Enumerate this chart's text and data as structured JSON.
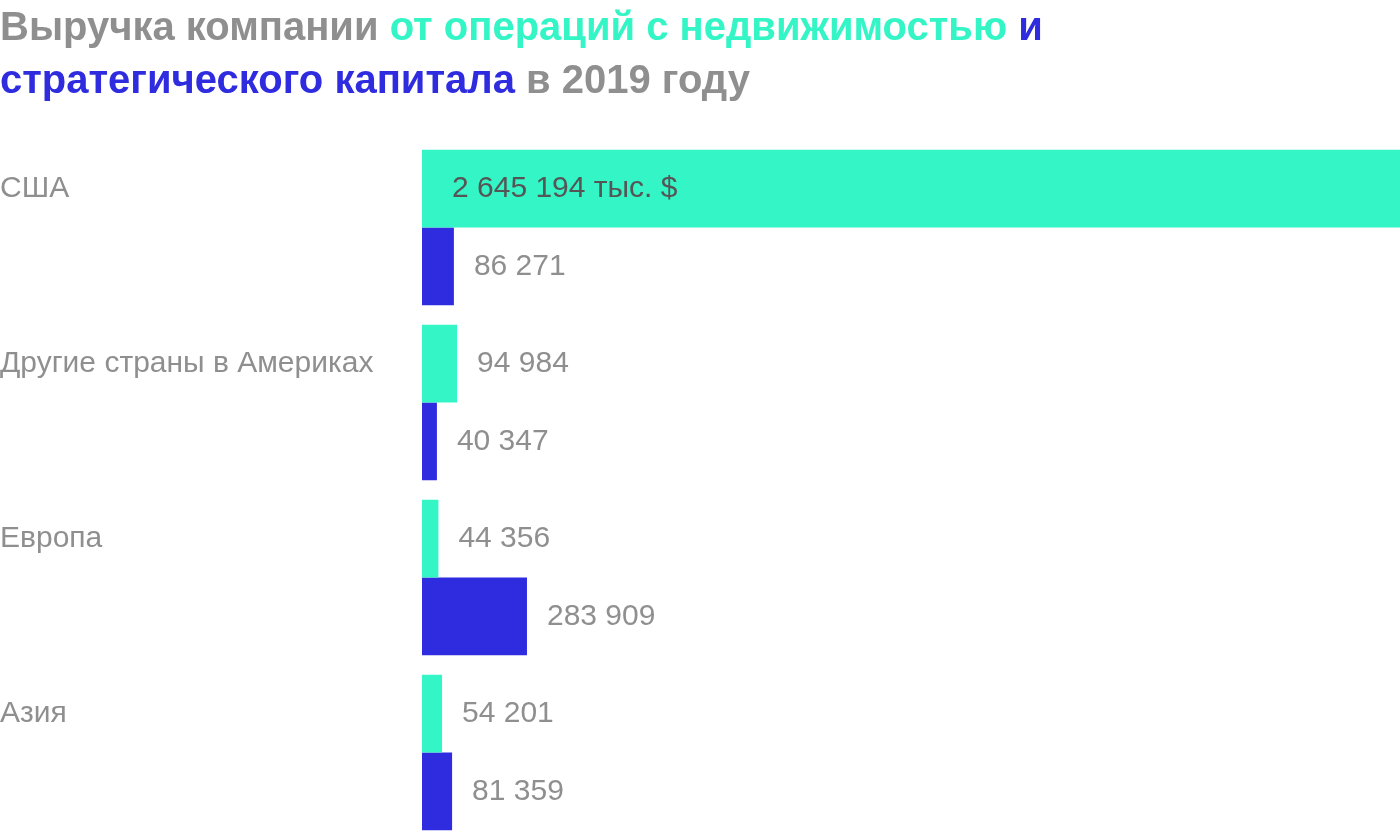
{
  "chart_data": {
    "type": "bar",
    "orientation": "horizontal",
    "title": "Выручка компании",
    "subtitle": "в 2019 году",
    "categories": [
      "США",
      "Другие страны в Америках",
      "Европа",
      "Азия"
    ],
    "series": [
      {
        "name": "от операций с недвижимостью",
        "color": "#33f5c5",
        "values": [
          2645194,
          94984,
          44356,
          54201
        ],
        "value_labels": [
          "2 645 194 тыс. $",
          "94 984",
          "44 356",
          "54 201"
        ]
      },
      {
        "name": "и стратегического капитала",
        "color": "#2f2ce0",
        "values": [
          86271,
          40347,
          283909,
          81359
        ],
        "value_labels": [
          "86 271",
          "40 347",
          "283 909",
          "81 359"
        ]
      }
    ],
    "xlim": [
      0,
      2645194
    ],
    "legend": false
  }
}
